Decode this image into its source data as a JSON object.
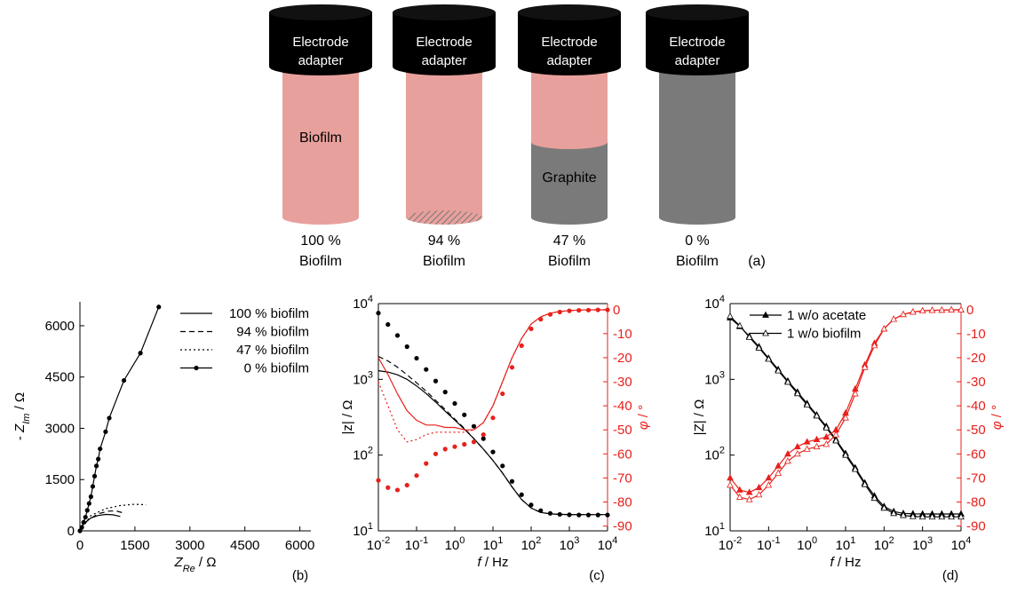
{
  "diagram": {
    "panel_label": "(a)",
    "cylinders": [
      {
        "adapter": [
          "Electrode",
          "adapter"
        ],
        "label": "Biofilm",
        "caption": [
          "100 %",
          "Biofilm"
        ]
      },
      {
        "adapter": [
          "Electrode",
          "adapter"
        ],
        "caption": [
          "94 %",
          "Biofilm"
        ]
      },
      {
        "adapter": [
          "Electrode",
          "adapter"
        ],
        "label": "Graphite",
        "caption": [
          "47 %",
          "Biofilm"
        ]
      },
      {
        "adapter": [
          "Electrode",
          "adapter"
        ],
        "caption": [
          "0 %",
          "Biofilm"
        ]
      }
    ]
  },
  "chart_data": [
    {
      "type": "line",
      "panel_label": "(b)",
      "box": false,
      "legend": "upper right",
      "xlabel": [
        {
          "text": "Z",
          "italic": true
        },
        {
          "text": "Re",
          "italic": true,
          "sub": true
        },
        {
          "text": " / Ω"
        }
      ],
      "ylabel": [
        {
          "text": "- "
        },
        {
          "text": "Z",
          "italic": true
        },
        {
          "text": "Im",
          "italic": true,
          "sub": true
        },
        {
          "text": " / Ω"
        }
      ],
      "xlim": [
        0,
        6300
      ],
      "xticks": [
        0,
        1500,
        3000,
        4500,
        6000
      ],
      "ylim": [
        0,
        6700
      ],
      "yticks": [
        0,
        1500,
        3000,
        4500,
        6000
      ],
      "series": [
        {
          "name": "100 % biofilm",
          "color": "#000000",
          "linestyle": "solid",
          "marker": "none",
          "x": [
            0,
            100,
            300,
            500,
            700,
            900,
            1100
          ],
          "values": [
            0,
            200,
            380,
            450,
            480,
            470,
            420
          ]
        },
        {
          "name": "94 % biofilm",
          "color": "#000000",
          "linestyle": "dashed",
          "marker": "none",
          "x": [
            0,
            200,
            500,
            800,
            1000,
            1200
          ],
          "values": [
            0,
            300,
            500,
            580,
            580,
            520
          ]
        },
        {
          "name": "47 % biofilm",
          "color": "#000000",
          "linestyle": "dotted",
          "marker": "none",
          "x": [
            0,
            300,
            700,
            1100,
            1500,
            1800
          ],
          "values": [
            0,
            450,
            650,
            740,
            780,
            760
          ]
        },
        {
          "name": "0 % biofilm",
          "color": "#000000",
          "linestyle": "solid",
          "marker": "circle",
          "x": [
            0,
            50,
            100,
            150,
            200,
            250,
            300,
            350,
            400,
            450,
            500,
            550,
            700,
            800,
            1200,
            1650,
            2150
          ],
          "values": [
            0,
            100,
            250,
            400,
            600,
            800,
            1000,
            1300,
            1600,
            1900,
            2100,
            2400,
            2900,
            3300,
            4400,
            5200,
            6550
          ]
        }
      ]
    },
    {
      "type": "line",
      "panel_label": "(c)",
      "box": true,
      "xlog": true,
      "ylog": true,
      "y2color": "#e8201c",
      "xlabel": [
        {
          "text": "f",
          "italic": true
        },
        {
          "text": " / Hz"
        }
      ],
      "ylabel": [
        {
          "text": "|z| / Ω"
        }
      ],
      "y2label": [
        {
          "text": "φ",
          "italic": true
        },
        {
          "text": " / °"
        }
      ],
      "xlim": [
        0.01,
        10000
      ],
      "xticks": [
        {
          "value": 0.01,
          "label": "10",
          "exp": "-2"
        },
        {
          "value": 0.1,
          "label": "10",
          "exp": "-1"
        },
        {
          "value": 1,
          "label": "10",
          "exp": "0"
        },
        {
          "value": 10,
          "label": "10",
          "exp": "1"
        },
        {
          "value": 100,
          "label": "10",
          "exp": "2"
        },
        {
          "value": 1000,
          "label": "10",
          "exp": "3"
        },
        {
          "value": 10000,
          "label": "10",
          "exp": "4"
        }
      ],
      "ylim": [
        10,
        10000
      ],
      "yticks": [
        {
          "value": 10,
          "label": "10",
          "exp": "1"
        },
        {
          "value": 100,
          "label": "10",
          "exp": "2"
        },
        {
          "value": 1000,
          "label": "10",
          "exp": "3"
        },
        {
          "value": 10000,
          "label": "10",
          "exp": "4"
        }
      ],
      "y2lim": [
        -92,
        2.5
      ],
      "y2ticks": [
        0,
        -10,
        -20,
        -30,
        -40,
        -50,
        -60,
        -70,
        -80,
        -90
      ],
      "x": [
        0.01,
        0.0178,
        0.0316,
        0.0562,
        0.1,
        0.178,
        0.316,
        0.562,
        1,
        1.78,
        3.16,
        5.62,
        10,
        17.8,
        31.6,
        56.2,
        100,
        178,
        316,
        562,
        1000,
        1780,
        3160,
        5620,
        10000
      ],
      "series": [
        {
          "color": "#000000",
          "linestyle": "solid",
          "marker": "none",
          "values": [
            1300,
            1250,
            1150,
            1000,
            820,
            650,
            500,
            380,
            290,
            220,
            165,
            120,
            85,
            58,
            38,
            26,
            20,
            17.5,
            16.8,
            16.5,
            16.4,
            16.4,
            16.4,
            16.4,
            16.4
          ]
        },
        {
          "color": "#000000",
          "linestyle": "dashed",
          "marker": "none",
          "values": [
            2000,
            1750,
            1450,
            1150,
            900,
            700,
            530,
            400,
            300,
            225,
            165,
            120,
            85,
            58,
            38,
            26,
            20,
            17.5,
            16.8,
            16.5,
            16.4,
            16.4,
            16.4,
            16.4,
            16.4
          ]
        },
        {
          "color": "#000000",
          "linestyle": "none",
          "marker": "circle",
          "values": [
            7500,
            5300,
            3800,
            2700,
            1900,
            1350,
            950,
            680,
            480,
            340,
            240,
            165,
            110,
            72,
            45,
            30,
            22,
            18.5,
            17,
            16.5,
            16.3,
            16.2,
            16.2,
            16.2,
            16.2
          ]
        },
        {
          "color": "#e8201c",
          "linestyle": "solid",
          "marker": "none",
          "axis": "y2",
          "values": [
            -20,
            -27,
            -35,
            -42,
            -46,
            -48,
            -48,
            -49,
            -49,
            -50,
            -50,
            -47,
            -40,
            -30,
            -20,
            -12,
            -6,
            -3,
            -1.5,
            -0.8,
            -0.4,
            -0.2,
            -0.1,
            -0.1,
            -0.1
          ]
        },
        {
          "color": "#e8201c",
          "linestyle": "dotted",
          "marker": "none",
          "axis": "y2",
          "values": [
            -30,
            -40,
            -50,
            -55,
            -54,
            -52,
            -51,
            -51,
            -51,
            -51,
            -50,
            -47,
            -40,
            -30,
            -20,
            -12,
            -6,
            -3,
            -1.5,
            -0.8,
            -0.4,
            -0.2,
            -0.1,
            -0.1,
            -0.1
          ]
        },
        {
          "color": "#e8201c",
          "linestyle": "none",
          "marker": "circle",
          "axis": "y2",
          "values": [
            -71,
            -74,
            -75,
            -73,
            -69,
            -64,
            -60,
            -58,
            -57,
            -56,
            -55,
            -52,
            -45,
            -35,
            -24,
            -15,
            -8,
            -4,
            -2,
            -1,
            -0.5,
            -0.3,
            -0.2,
            -0.1,
            -0.1
          ]
        }
      ]
    },
    {
      "type": "line",
      "panel_label": "(d)",
      "box": true,
      "xlog": true,
      "ylog": true,
      "y2color": "#e8201c",
      "legend": "upper left",
      "xlabel": [
        {
          "text": "f",
          "italic": true
        },
        {
          "text": " / Hz"
        }
      ],
      "ylabel": [
        {
          "text": "|Z| / Ω"
        }
      ],
      "y2label": [
        {
          "text": "φ",
          "italic": true
        },
        {
          "text": " / °"
        }
      ],
      "xlim": [
        0.01,
        10000
      ],
      "xticks": [
        {
          "value": 0.01,
          "label": "10",
          "exp": "-2"
        },
        {
          "value": 0.1,
          "label": "10",
          "exp": "-1"
        },
        {
          "value": 1,
          "label": "10",
          "exp": "0"
        },
        {
          "value": 10,
          "label": "10",
          "exp": "1"
        },
        {
          "value": 100,
          "label": "10",
          "exp": "2"
        },
        {
          "value": 1000,
          "label": "10",
          "exp": "3"
        },
        {
          "value": 10000,
          "label": "10",
          "exp": "4"
        }
      ],
      "ylim": [
        10,
        10000
      ],
      "yticks": [
        {
          "value": 10,
          "label": "10",
          "exp": "1"
        },
        {
          "value": 100,
          "label": "10",
          "exp": "2"
        },
        {
          "value": 1000,
          "label": "10",
          "exp": "3"
        },
        {
          "value": 10000,
          "label": "10",
          "exp": "4"
        }
      ],
      "y2lim": [
        -92,
        2.5
      ],
      "y2ticks": [
        0,
        -10,
        -20,
        -30,
        -40,
        -50,
        -60,
        -70,
        -80,
        -90
      ],
      "x": [
        0.01,
        0.0178,
        0.0316,
        0.0562,
        0.1,
        0.178,
        0.316,
        0.562,
        1,
        1.78,
        3.16,
        5.62,
        10,
        17.8,
        31.6,
        56.2,
        100,
        178,
        316,
        562,
        1000,
        1780,
        3160,
        5620,
        10000
      ],
      "series": [
        {
          "name": "1 w/o acetate",
          "color": "#000000",
          "linestyle": "solid",
          "marker": "triangle",
          "values": [
            6500,
            5000,
            3700,
            2700,
            1900,
            1350,
            950,
            680,
            480,
            340,
            240,
            160,
            105,
            68,
            43,
            29,
            21,
            18,
            17,
            16.8,
            16.7,
            16.7,
            16.7,
            16.7,
            16.7
          ]
        },
        {
          "name": "1 w/o biofilm",
          "color": "#000000",
          "linestyle": "solid",
          "marker": "open-triangle",
          "values": [
            6800,
            5100,
            3600,
            2600,
            1850,
            1300,
            920,
            650,
            460,
            330,
            230,
            155,
            100,
            65,
            41,
            27,
            20,
            17,
            16,
            15.5,
            15.3,
            15.3,
            15.3,
            15.3,
            15.3
          ]
        },
        {
          "color": "#e8201c",
          "linestyle": "solid",
          "marker": "triangle",
          "axis": "y2",
          "values": [
            -70,
            -75,
            -76,
            -74,
            -70,
            -65,
            -60,
            -57,
            -55,
            -54,
            -53,
            -50,
            -43,
            -33,
            -23,
            -14,
            -8,
            -4,
            -2,
            -1,
            -0.5,
            -0.3,
            -0.2,
            -0.1,
            -0.1
          ]
        },
        {
          "color": "#e8201c",
          "linestyle": "solid",
          "marker": "open-triangle",
          "axis": "y2",
          "values": [
            -73,
            -78,
            -79,
            -77,
            -73,
            -68,
            -63,
            -60,
            -58,
            -57,
            -56,
            -52,
            -45,
            -35,
            -24,
            -15,
            -8,
            -4,
            -2,
            -1,
            -0.5,
            -0.3,
            -0.2,
            -0.1,
            -0.1
          ]
        }
      ]
    }
  ]
}
